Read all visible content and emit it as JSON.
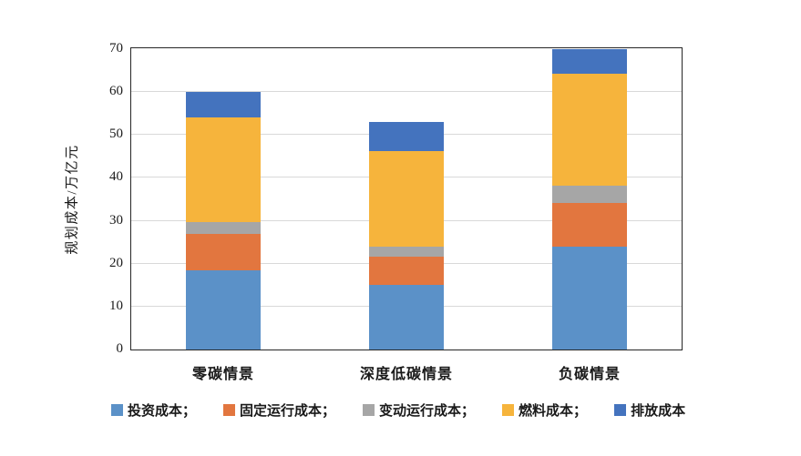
{
  "chart_data": {
    "type": "bar",
    "stacked": true,
    "title": "",
    "categories": [
      "零碳情景",
      "深度低碳情景",
      "负碳情景"
    ],
    "series": [
      {
        "name": "投资成本",
        "legend_label": "投资成本；",
        "color": "#5B91C8",
        "values": [
          18.5,
          15.0,
          24.0
        ]
      },
      {
        "name": "固定运行成本",
        "legend_label": "固定运行成本；",
        "color": "#E2763F",
        "values": [
          8.4,
          6.7,
          10.2
        ]
      },
      {
        "name": "变动运行成本",
        "legend_label": "变动运行成本；",
        "color": "#A6A6A6",
        "values": [
          2.8,
          2.3,
          3.9
        ]
      },
      {
        "name": "燃料成本",
        "legend_label": "燃料成本；",
        "color": "#F6B43C",
        "values": [
          24.3,
          22.2,
          26.1
        ]
      },
      {
        "name": "排放成本",
        "legend_label": "排放成本",
        "color": "#4473BE",
        "values": [
          6.0,
          6.8,
          5.8
        ]
      }
    ],
    "category_totals": [
      60,
      53,
      70
    ],
    "xlabel": "",
    "ylabel": "规划成本/万亿元",
    "ylim": [
      0,
      70
    ],
    "yticks": [
      0,
      10,
      20,
      30,
      40,
      50,
      60,
      70
    ],
    "grid": true,
    "gridline_color": "#D9D9D9",
    "axis_color": "#262626",
    "legend_position": "bottom",
    "background": "#FFFFFF"
  }
}
